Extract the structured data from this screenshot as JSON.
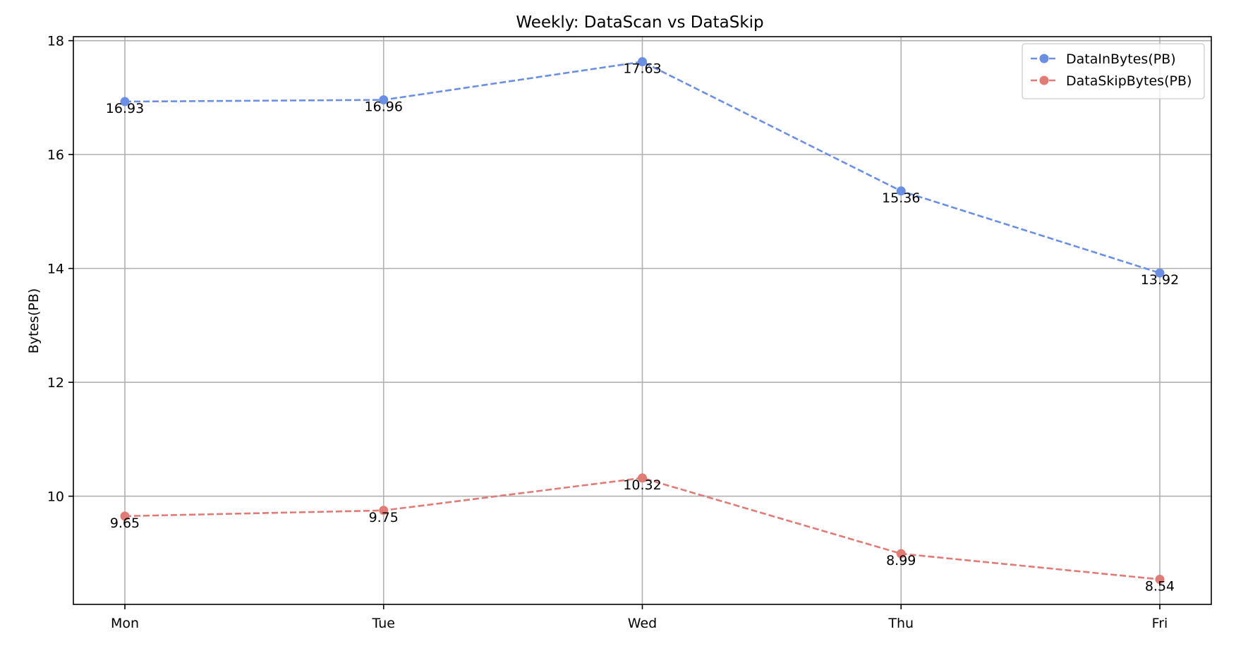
{
  "chart_data": {
    "type": "line",
    "title": "Weekly: DataScan vs DataSkip",
    "xlabel": "",
    "ylabel": "Bytes(PB)",
    "categories": [
      "Mon",
      "Tue",
      "Wed",
      "Thu",
      "Fri"
    ],
    "ylim": [
      8.1,
      18.07
    ],
    "yticks": [
      10,
      12,
      14,
      16,
      18
    ],
    "ytick_labels": [
      "10",
      "12",
      "14",
      "16",
      "18"
    ],
    "grid": true,
    "legend_position": "top-right",
    "series": [
      {
        "name": "DataInBytes(PB)",
        "color": "#6b8fe3",
        "line_style": "dashed",
        "marker": "circle",
        "values": [
          16.93,
          16.96,
          17.63,
          15.36,
          13.92
        ],
        "labels": [
          "16.93",
          "16.96",
          "17.63",
          "15.36",
          "13.92"
        ]
      },
      {
        "name": "DataSkipBytes(PB)",
        "color": "#e07b76",
        "line_style": "dashed",
        "marker": "circle",
        "values": [
          9.65,
          9.75,
          10.32,
          8.99,
          8.54
        ],
        "labels": [
          "9.65",
          "9.75",
          "10.32",
          "8.99",
          "8.54"
        ]
      }
    ]
  }
}
